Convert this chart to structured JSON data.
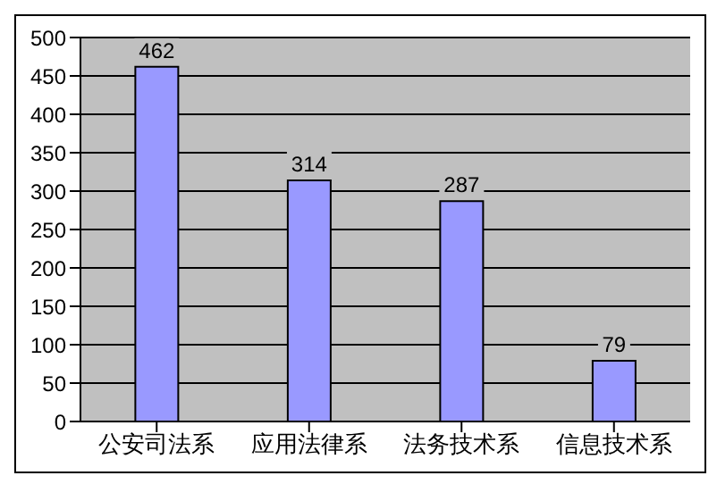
{
  "chart_data": {
    "type": "bar",
    "categories": [
      "公安司法系",
      "应用法律系",
      "法务技术系",
      "信息技术系"
    ],
    "values": [
      462,
      314,
      287,
      79
    ],
    "color": "#9999ff",
    "ylim": [
      0,
      500
    ],
    "yticks": [
      0,
      50,
      100,
      150,
      200,
      250,
      300,
      350,
      400,
      450,
      500
    ],
    "grid": "y",
    "data_labels": true
  }
}
